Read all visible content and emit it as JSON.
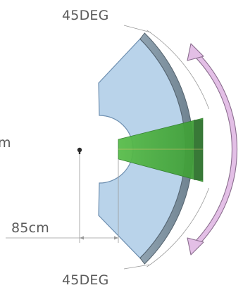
{
  "labels": {
    "angle_top": "45DEG",
    "angle_bottom": "45DEG",
    "cut_left": "m",
    "distance": "85cm"
  },
  "colors": {
    "sector_fill": "#b9d3ea",
    "sector_stroke": "#6e8fb0",
    "rim_fill": "#8ea0ad",
    "beam_fill": "#4fb445",
    "arrow_fill": "#e3bfe6",
    "arrow_stroke": "#8a6d8e",
    "dimension_line": "#9a9a9a"
  },
  "icons": {
    "origin": "sensor-dot-icon",
    "rotation": "double-headed-curved-arrow-icon"
  }
}
